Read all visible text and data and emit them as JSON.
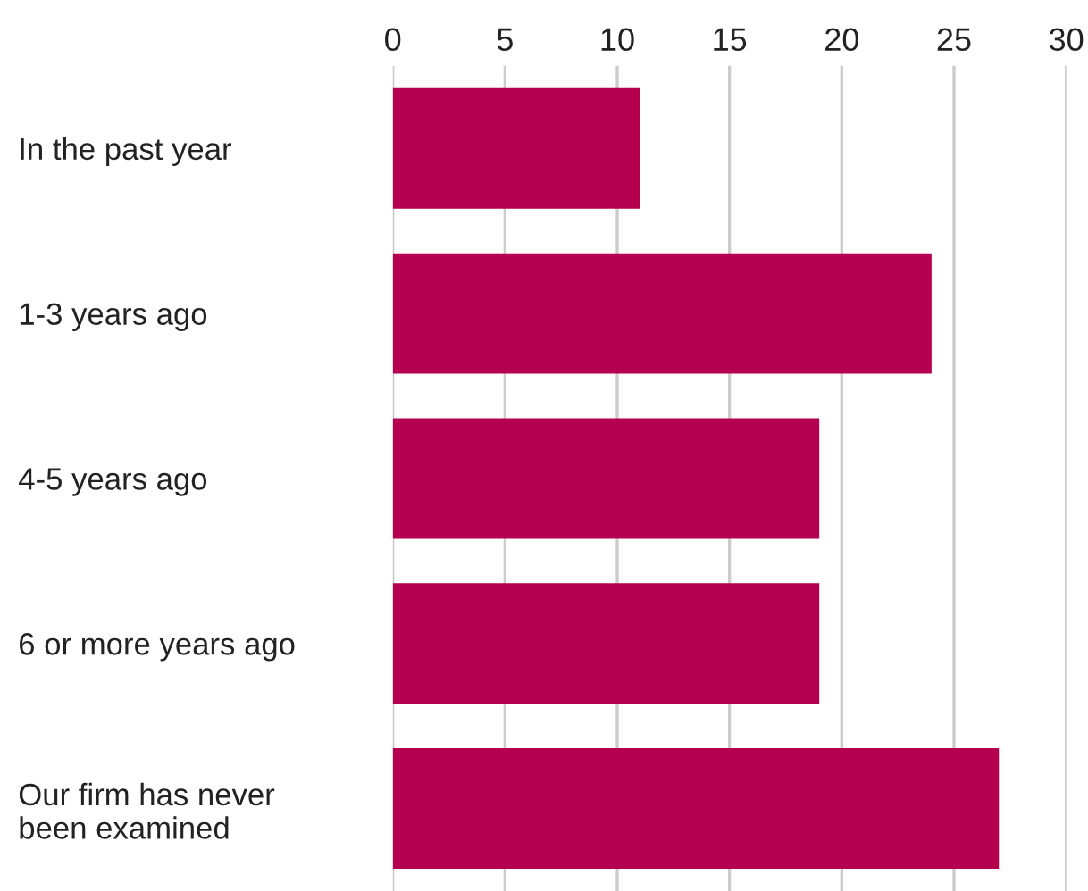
{
  "chart_data": {
    "type": "bar",
    "orientation": "horizontal",
    "categories": [
      "In the past year",
      "1-3 years ago",
      "4-5 years ago",
      "6 or more years ago",
      "Our firm has never\nbeen examined"
    ],
    "values": [
      11,
      24,
      19,
      19,
      27
    ],
    "color": "#b5004f",
    "xlim": [
      0,
      30
    ],
    "xticks": [
      0,
      5,
      10,
      15,
      20,
      25,
      30
    ],
    "grid": "x"
  }
}
